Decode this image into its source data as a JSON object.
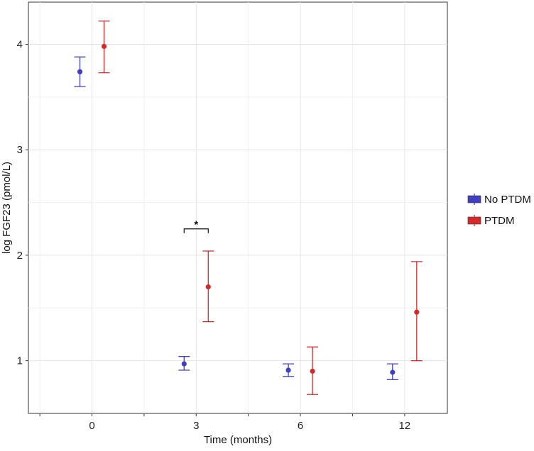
{
  "chart_data": {
    "type": "scatter",
    "subtype": "point-range (mean with error bars)",
    "title": "",
    "xlabel": "Time (months)",
    "ylabel": "log FGF23 (pmol/L)",
    "categories": [
      "0",
      "3",
      "6",
      "12"
    ],
    "ylim": [
      0.5,
      4.4
    ],
    "yticks": [
      1,
      2,
      3,
      4
    ],
    "grid": true,
    "legend_position": "right",
    "series": [
      {
        "name": "No PTDM",
        "color": "#3f3fbf",
        "values": [
          3.74,
          0.97,
          0.91,
          0.89
        ],
        "lower": [
          3.6,
          0.91,
          0.85,
          0.82
        ],
        "upper": [
          3.88,
          1.04,
          0.97,
          0.97
        ]
      },
      {
        "name": "PTDM",
        "color": "#d62a2a",
        "values": [
          3.98,
          1.7,
          0.9,
          1.46
        ],
        "lower": [
          3.73,
          1.37,
          0.68,
          1.0
        ],
        "upper": [
          4.22,
          2.04,
          1.13,
          1.94
        ]
      }
    ],
    "annotations": [
      {
        "text": "*",
        "category": "3",
        "between": [
          "No PTDM",
          "PTDM"
        ],
        "y": 2.25
      }
    ]
  }
}
